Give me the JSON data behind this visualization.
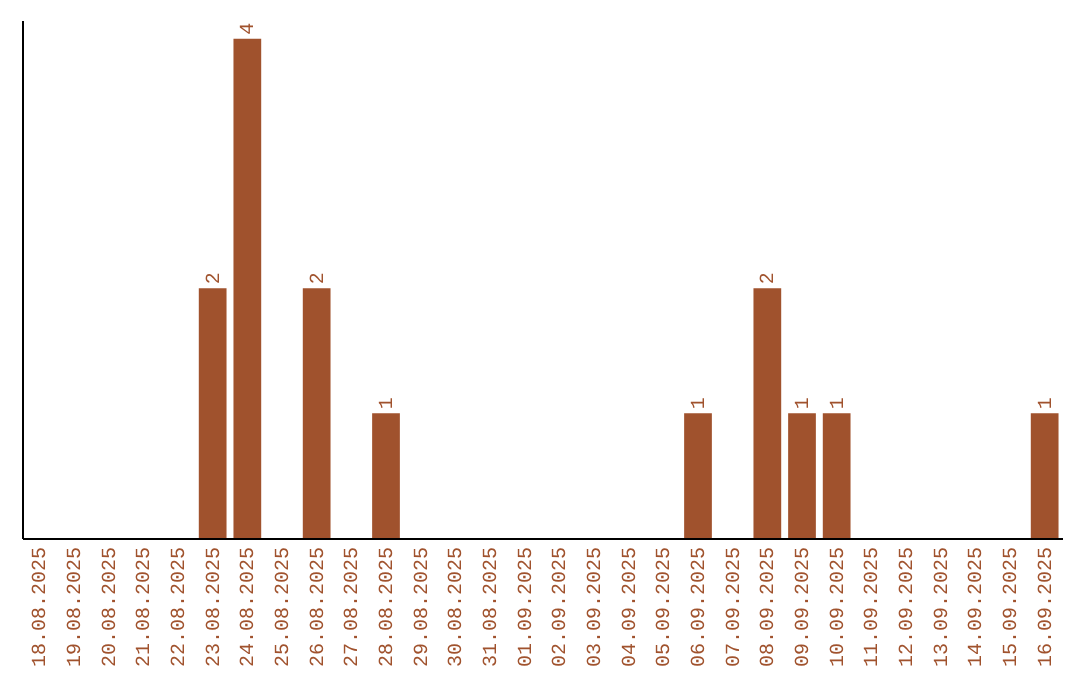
{
  "chart_data": {
    "type": "bar",
    "categories": [
      "18.08.2025",
      "19.08.2025",
      "20.08.2025",
      "21.08.2025",
      "22.08.2025",
      "23.08.2025",
      "24.08.2025",
      "25.08.2025",
      "26.08.2025",
      "27.08.2025",
      "28.08.2025",
      "29.08.2025",
      "30.08.2025",
      "31.08.2025",
      "01.09.2025",
      "02.09.2025",
      "03.09.2025",
      "04.09.2025",
      "05.09.2025",
      "06.09.2025",
      "07.09.2025",
      "08.09.2025",
      "09.09.2025",
      "10.09.2025",
      "11.09.2025",
      "12.09.2025",
      "13.09.2025",
      "14.09.2025",
      "15.09.2025",
      "16.09.2025"
    ],
    "values": [
      0,
      0,
      0,
      0,
      0,
      2,
      4,
      0,
      2,
      0,
      1,
      0,
      0,
      0,
      0,
      0,
      0,
      0,
      0,
      1,
      0,
      2,
      1,
      1,
      0,
      0,
      0,
      0,
      0,
      1
    ],
    "value_labels": [
      null,
      null,
      null,
      null,
      null,
      "2",
      "4",
      null,
      "2",
      null,
      "1",
      null,
      null,
      null,
      null,
      null,
      null,
      null,
      null,
      "1",
      null,
      "2",
      "1",
      "1",
      null,
      null,
      null,
      null,
      null,
      "1"
    ],
    "color": "#a0522d",
    "ylim": [
      0,
      4.15
    ],
    "tick_labels": "x",
    "grid": false
  }
}
